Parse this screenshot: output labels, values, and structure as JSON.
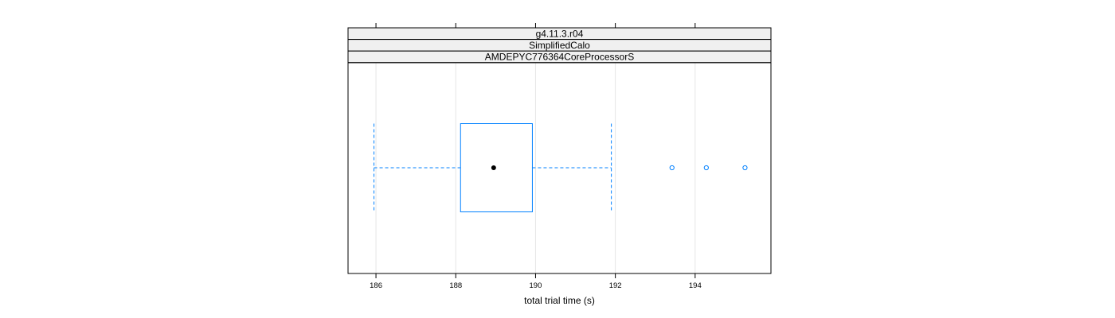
{
  "chart_data": {
    "type": "boxplot",
    "strips": [
      "g4.11.3.r04",
      "SimplifiedCalo",
      "AMDEPYC776364CoreProcessorS"
    ],
    "xlabel": "total trial time (s)",
    "xlim": [
      185.3,
      195.9
    ],
    "ticks": [
      186,
      188,
      190,
      192,
      194
    ],
    "tick_labels": [
      "186",
      "188",
      "190",
      "192",
      "194"
    ],
    "box": {
      "whisker_low": 185.95,
      "q1": 188.12,
      "median": 188.95,
      "q3": 189.92,
      "whisker_high": 191.9
    },
    "outliers": [
      193.42,
      194.28,
      195.25
    ],
    "colors": {
      "box": "#0080ff",
      "grid": "#e6e6e6",
      "strip_bg": "#f0f0f0",
      "frame": "#000000"
    },
    "grid": true
  }
}
